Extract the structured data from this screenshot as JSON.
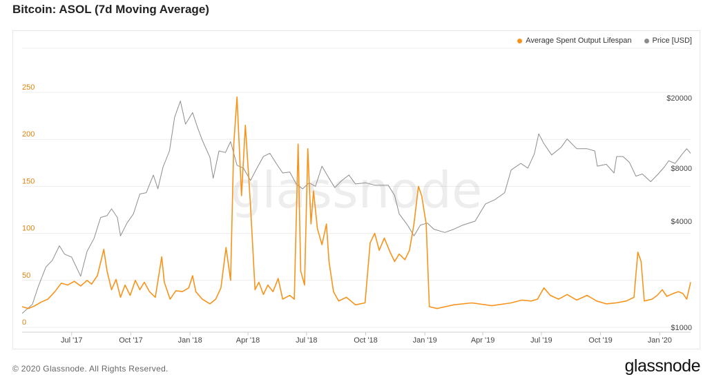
{
  "title": "Bitcoin: ASOL (7d Moving Average)",
  "footer": "© 2020 Glassnode. All Rights Reserved.",
  "brand": "glassnode",
  "watermark": "glassnode",
  "colors": {
    "asol": "#f7931a",
    "price": "#8c8c8c",
    "grid": "#ececec",
    "left_axis": "#d9820f"
  },
  "legend": [
    {
      "label": "Average Spent Output Lifespan",
      "color": "#f7931a"
    },
    {
      "label": "Price [USD]",
      "color": "#8c8c8c"
    }
  ],
  "chart_data": {
    "type": "line",
    "x_axis": {
      "range": [
        "2017-04-15",
        "2020-02-18"
      ],
      "ticks": [
        {
          "date": "2017-07-01",
          "label": "Jul '17"
        },
        {
          "date": "2017-10-01",
          "label": "Oct '17"
        },
        {
          "date": "2018-01-01",
          "label": "Jan '18"
        },
        {
          "date": "2018-04-01",
          "label": "Apr '18"
        },
        {
          "date": "2018-07-01",
          "label": "Jul '18"
        },
        {
          "date": "2018-10-01",
          "label": "Oct '18"
        },
        {
          "date": "2019-01-01",
          "label": "Jan '19"
        },
        {
          "date": "2019-04-01",
          "label": "Apr '19"
        },
        {
          "date": "2019-07-01",
          "label": "Jul '19"
        },
        {
          "date": "2019-10-01",
          "label": "Oct '19"
        },
        {
          "date": "2020-01-01",
          "label": "Jan '20"
        }
      ]
    },
    "y_left": {
      "min": 0,
      "max": 250,
      "ticks": [
        0,
        50,
        100,
        150,
        200,
        250
      ]
    },
    "y_right": {
      "scale": "log",
      "min": 1000,
      "max": 20000,
      "ticks": [
        {
          "value": 1000,
          "label": "$1000"
        },
        {
          "value": 4000,
          "label": "$4000"
        },
        {
          "value": 8000,
          "label": "$8000"
        },
        {
          "value": 20000,
          "label": "$20000"
        }
      ]
    },
    "grid": true,
    "legend_position": "top-right",
    "series": [
      {
        "name": "Average Spent Output Lifespan",
        "axis": "left",
        "points": [
          [
            "2017-04-15",
            22
          ],
          [
            "2017-04-25",
            20
          ],
          [
            "2017-05-05",
            23
          ],
          [
            "2017-05-15",
            27
          ],
          [
            "2017-05-25",
            30
          ],
          [
            "2017-06-05",
            38
          ],
          [
            "2017-06-15",
            47
          ],
          [
            "2017-06-25",
            45
          ],
          [
            "2017-07-05",
            49
          ],
          [
            "2017-07-15",
            44
          ],
          [
            "2017-07-25",
            50
          ],
          [
            "2017-08-01",
            46
          ],
          [
            "2017-08-10",
            55
          ],
          [
            "2017-08-20",
            83
          ],
          [
            "2017-08-25",
            60
          ],
          [
            "2017-09-01",
            40
          ],
          [
            "2017-09-08",
            51
          ],
          [
            "2017-09-15",
            32
          ],
          [
            "2017-09-22",
            45
          ],
          [
            "2017-09-30",
            34
          ],
          [
            "2017-10-08",
            50
          ],
          [
            "2017-10-15",
            40
          ],
          [
            "2017-10-22",
            48
          ],
          [
            "2017-10-30",
            38
          ],
          [
            "2017-11-08",
            32
          ],
          [
            "2017-11-18",
            75
          ],
          [
            "2017-11-22",
            48
          ],
          [
            "2017-12-01",
            30
          ],
          [
            "2017-12-10",
            39
          ],
          [
            "2017-12-20",
            38
          ],
          [
            "2017-12-30",
            42
          ],
          [
            "2018-01-05",
            55
          ],
          [
            "2018-01-10",
            38
          ],
          [
            "2018-01-20",
            30
          ],
          [
            "2018-02-01",
            25
          ],
          [
            "2018-02-10",
            30
          ],
          [
            "2018-02-18",
            42
          ],
          [
            "2018-02-26",
            85
          ],
          [
            "2018-03-05",
            50
          ],
          [
            "2018-03-10",
            195
          ],
          [
            "2018-03-15",
            245
          ],
          [
            "2018-03-22",
            140
          ],
          [
            "2018-03-28",
            215
          ],
          [
            "2018-04-05",
            130
          ],
          [
            "2018-04-12",
            40
          ],
          [
            "2018-04-18",
            48
          ],
          [
            "2018-04-25",
            35
          ],
          [
            "2018-05-02",
            45
          ],
          [
            "2018-05-10",
            38
          ],
          [
            "2018-05-18",
            52
          ],
          [
            "2018-05-25",
            30
          ],
          [
            "2018-06-05",
            34
          ],
          [
            "2018-06-12",
            30
          ],
          [
            "2018-06-18",
            195
          ],
          [
            "2018-06-22",
            60
          ],
          [
            "2018-06-28",
            45
          ],
          [
            "2018-07-03",
            190
          ],
          [
            "2018-07-08",
            110
          ],
          [
            "2018-07-12",
            145
          ],
          [
            "2018-07-18",
            105
          ],
          [
            "2018-07-25",
            88
          ],
          [
            "2018-08-01",
            110
          ],
          [
            "2018-08-05",
            70
          ],
          [
            "2018-08-12",
            38
          ],
          [
            "2018-08-20",
            28
          ],
          [
            "2018-09-01",
            32
          ],
          [
            "2018-09-15",
            24
          ],
          [
            "2018-09-30",
            26
          ],
          [
            "2018-10-08",
            90
          ],
          [
            "2018-10-15",
            100
          ],
          [
            "2018-10-22",
            82
          ],
          [
            "2018-10-30",
            95
          ],
          [
            "2018-11-08",
            80
          ],
          [
            "2018-11-15",
            70
          ],
          [
            "2018-11-22",
            78
          ],
          [
            "2018-12-01",
            72
          ],
          [
            "2018-12-08",
            82
          ],
          [
            "2018-12-15",
            110
          ],
          [
            "2018-12-22",
            150
          ],
          [
            "2018-12-27",
            140
          ],
          [
            "2019-01-03",
            110
          ],
          [
            "2019-01-08",
            22
          ],
          [
            "2019-01-20",
            20
          ],
          [
            "2019-02-15",
            24
          ],
          [
            "2019-03-15",
            26
          ],
          [
            "2019-04-15",
            23
          ],
          [
            "2019-05-15",
            26
          ],
          [
            "2019-06-01",
            29
          ],
          [
            "2019-06-15",
            28
          ],
          [
            "2019-06-25",
            30
          ],
          [
            "2019-07-05",
            42
          ],
          [
            "2019-07-15",
            34
          ],
          [
            "2019-07-28",
            30
          ],
          [
            "2019-08-10",
            35
          ],
          [
            "2019-08-25",
            29
          ],
          [
            "2019-09-10",
            34
          ],
          [
            "2019-09-25",
            28
          ],
          [
            "2019-10-10",
            25
          ],
          [
            "2019-10-25",
            26
          ],
          [
            "2019-11-10",
            28
          ],
          [
            "2019-11-22",
            32
          ],
          [
            "2019-11-28",
            80
          ],
          [
            "2019-12-03",
            70
          ],
          [
            "2019-12-08",
            28
          ],
          [
            "2019-12-20",
            30
          ],
          [
            "2019-12-28",
            34
          ],
          [
            "2020-01-05",
            40
          ],
          [
            "2020-01-12",
            33
          ],
          [
            "2020-01-22",
            36
          ],
          [
            "2020-01-30",
            38
          ],
          [
            "2020-02-06",
            36
          ],
          [
            "2020-02-12",
            30
          ],
          [
            "2020-02-18",
            48
          ]
        ]
      },
      {
        "name": "Price [USD]",
        "axis": "right",
        "points": [
          [
            "2017-04-15",
            1200
          ],
          [
            "2017-05-01",
            1350
          ],
          [
            "2017-05-10",
            1700
          ],
          [
            "2017-05-22",
            2200
          ],
          [
            "2017-06-01",
            2400
          ],
          [
            "2017-06-12",
            2900
          ],
          [
            "2017-06-20",
            2600
          ],
          [
            "2017-07-01",
            2500
          ],
          [
            "2017-07-15",
            1950
          ],
          [
            "2017-07-25",
            2700
          ],
          [
            "2017-08-05",
            3200
          ],
          [
            "2017-08-15",
            4200
          ],
          [
            "2017-08-25",
            4300
          ],
          [
            "2017-09-01",
            4700
          ],
          [
            "2017-09-10",
            4200
          ],
          [
            "2017-09-15",
            3300
          ],
          [
            "2017-09-25",
            3900
          ],
          [
            "2017-10-05",
            4400
          ],
          [
            "2017-10-15",
            5700
          ],
          [
            "2017-10-25",
            5800
          ],
          [
            "2017-11-05",
            7300
          ],
          [
            "2017-11-12",
            6100
          ],
          [
            "2017-11-20",
            8100
          ],
          [
            "2017-11-30",
            10000
          ],
          [
            "2017-12-08",
            15500
          ],
          [
            "2017-12-17",
            19200
          ],
          [
            "2017-12-25",
            14200
          ],
          [
            "2018-01-05",
            16500
          ],
          [
            "2018-01-12",
            13800
          ],
          [
            "2018-01-20",
            11500
          ],
          [
            "2018-02-01",
            9200
          ],
          [
            "2018-02-06",
            7000
          ],
          [
            "2018-02-15",
            10000
          ],
          [
            "2018-02-25",
            9800
          ],
          [
            "2018-03-05",
            11300
          ],
          [
            "2018-03-15",
            8300
          ],
          [
            "2018-03-25",
            8000
          ],
          [
            "2018-04-05",
            6800
          ],
          [
            "2018-04-15",
            8000
          ],
          [
            "2018-04-25",
            9300
          ],
          [
            "2018-05-05",
            9700
          ],
          [
            "2018-05-15",
            8500
          ],
          [
            "2018-05-25",
            7500
          ],
          [
            "2018-06-05",
            7600
          ],
          [
            "2018-06-15",
            6500
          ],
          [
            "2018-06-25",
            6100
          ],
          [
            "2018-07-05",
            6600
          ],
          [
            "2018-07-15",
            6300
          ],
          [
            "2018-07-25",
            8200
          ],
          [
            "2018-08-05",
            7000
          ],
          [
            "2018-08-14",
            6200
          ],
          [
            "2018-08-25",
            6800
          ],
          [
            "2018-09-05",
            7300
          ],
          [
            "2018-09-15",
            6500
          ],
          [
            "2018-10-01",
            6600
          ],
          [
            "2018-10-15",
            6400
          ],
          [
            "2018-11-05",
            6400
          ],
          [
            "2018-11-15",
            5600
          ],
          [
            "2018-11-22",
            4400
          ],
          [
            "2018-12-05",
            3800
          ],
          [
            "2018-12-15",
            3300
          ],
          [
            "2018-12-25",
            3800
          ],
          [
            "2019-01-05",
            3900
          ],
          [
            "2019-01-15",
            3600
          ],
          [
            "2019-02-01",
            3450
          ],
          [
            "2019-02-15",
            3600
          ],
          [
            "2019-03-01",
            3800
          ],
          [
            "2019-03-20",
            4000
          ],
          [
            "2019-04-05",
            5000
          ],
          [
            "2019-04-20",
            5300
          ],
          [
            "2019-05-05",
            5800
          ],
          [
            "2019-05-15",
            7800
          ],
          [
            "2019-05-30",
            8500
          ],
          [
            "2019-06-10",
            8000
          ],
          [
            "2019-06-20",
            9600
          ],
          [
            "2019-06-27",
            12500
          ],
          [
            "2019-07-05",
            11000
          ],
          [
            "2019-07-17",
            9500
          ],
          [
            "2019-08-01",
            10500
          ],
          [
            "2019-08-10",
            11700
          ],
          [
            "2019-08-25",
            10300
          ],
          [
            "2019-09-10",
            10300
          ],
          [
            "2019-09-22",
            10000
          ],
          [
            "2019-09-26",
            8200
          ],
          [
            "2019-10-10",
            8400
          ],
          [
            "2019-10-22",
            7500
          ],
          [
            "2019-10-26",
            9300
          ],
          [
            "2019-11-05",
            9300
          ],
          [
            "2019-11-15",
            8600
          ],
          [
            "2019-11-25",
            7200
          ],
          [
            "2019-12-05",
            7400
          ],
          [
            "2019-12-18",
            6700
          ],
          [
            "2019-12-28",
            7300
          ],
          [
            "2020-01-08",
            8100
          ],
          [
            "2020-01-15",
            8800
          ],
          [
            "2020-01-25",
            8500
          ],
          [
            "2020-02-05",
            9600
          ],
          [
            "2020-02-12",
            10300
          ],
          [
            "2020-02-18",
            9700
          ]
        ]
      }
    ]
  }
}
